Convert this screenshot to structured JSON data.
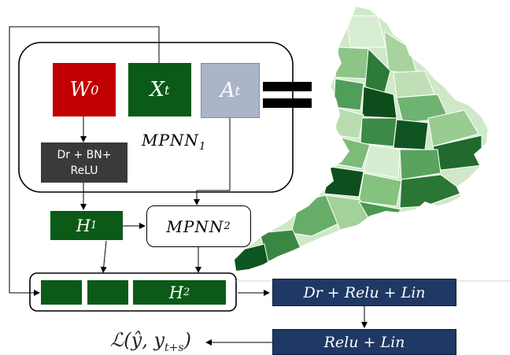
{
  "blocks": {
    "w0": {
      "main": "W",
      "sub": "0"
    },
    "xt": {
      "main": "X",
      "sub": "t"
    },
    "at": {
      "main": "A",
      "sub": "t"
    },
    "mpnn1": {
      "main": "MPNN",
      "sub": "1"
    },
    "dr_bn_relu": {
      "line1": "Dr + BN+",
      "line2": "ReLU"
    },
    "h1": {
      "main": "H",
      "sub": "1"
    },
    "mpnn2": {
      "main": "MPNN",
      "sub": "2"
    },
    "h2": {
      "main": "H",
      "sub": "2"
    },
    "dr_relu_lin": {
      "text": "Dr + Relu + Lin"
    },
    "relu_lin": {
      "text": "Relu + Lin"
    },
    "loss": {
      "main": "ℒ(ŷ, y",
      "sub": "t+s",
      "close": ")"
    }
  },
  "colors": {
    "w0": "#c00000",
    "dark_green": "#0b5a17",
    "a_t": "#aab5c8",
    "dark_gray": "#3a3a3a",
    "navy": "#1f3864",
    "map_light": "#c9e5c1",
    "map_mid": "#5fa866",
    "map_dark": "#0d4d1c"
  }
}
